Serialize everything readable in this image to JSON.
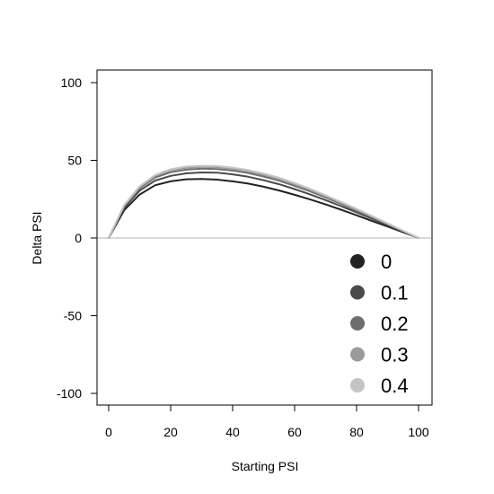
{
  "chart_data": {
    "type": "line",
    "title": "",
    "xlabel": "Starting PSI",
    "ylabel": "Delta PSI",
    "xlim": [
      0,
      100
    ],
    "ylim": [
      -100,
      100
    ],
    "xticks": [
      "0",
      "20",
      "40",
      "60",
      "80",
      "100"
    ],
    "yticks": [
      "-100",
      "-50",
      "0",
      "50",
      "100"
    ],
    "grid": false,
    "legend_position": "bottom-right",
    "zero_line": {
      "y": 0,
      "color": "#d9d9d9"
    },
    "series": [
      {
        "name": "0",
        "color": "#222222",
        "x": [
          0,
          5,
          10,
          15,
          20,
          25,
          30,
          35,
          40,
          45,
          50,
          55,
          60,
          65,
          70,
          75,
          80,
          85,
          90,
          95,
          100
        ],
        "y": [
          0,
          18,
          28,
          34,
          36.5,
          37.8,
          38,
          37.6,
          36.5,
          35,
          33,
          30.6,
          27.8,
          24.8,
          21.6,
          18.2,
          14.6,
          11,
          7.4,
          3.7,
          0
        ]
      },
      {
        "name": "0.1",
        "color": "#4a4a4a",
        "x": [
          0,
          5,
          10,
          15,
          20,
          25,
          30,
          35,
          40,
          45,
          50,
          55,
          60,
          65,
          70,
          75,
          80,
          85,
          90,
          95,
          100
        ],
        "y": [
          0,
          19.5,
          30.5,
          37,
          40,
          41.6,
          42.2,
          42,
          41,
          39.4,
          37.2,
          34.6,
          31.5,
          28.1,
          24.4,
          20.5,
          16.5,
          12.4,
          8.3,
          4.2,
          0
        ]
      },
      {
        "name": "0.2",
        "color": "#6e6e6e",
        "x": [
          0,
          5,
          10,
          15,
          20,
          25,
          30,
          35,
          40,
          45,
          50,
          55,
          60,
          65,
          70,
          75,
          80,
          85,
          90,
          95,
          100
        ],
        "y": [
          0,
          20.5,
          32,
          39,
          42.3,
          44,
          44.6,
          44.4,
          43.4,
          41.8,
          39.6,
          36.9,
          33.6,
          30,
          26.1,
          22,
          17.7,
          13.3,
          8.9,
          4.5,
          0
        ]
      },
      {
        "name": "0.3",
        "color": "#9a9a9a",
        "x": [
          0,
          5,
          10,
          15,
          20,
          25,
          30,
          35,
          40,
          45,
          50,
          55,
          60,
          65,
          70,
          75,
          80,
          85,
          90,
          95,
          100
        ],
        "y": [
          0,
          21,
          32.8,
          40,
          43.5,
          45.2,
          45.8,
          45.6,
          44.6,
          43,
          40.8,
          38,
          34.7,
          31,
          27,
          22.7,
          18.3,
          13.8,
          9.2,
          4.6,
          0
        ]
      },
      {
        "name": "0.4",
        "color": "#c4c4c4",
        "x": [
          0,
          5,
          10,
          15,
          20,
          25,
          30,
          35,
          40,
          45,
          50,
          55,
          60,
          65,
          70,
          75,
          80,
          85,
          90,
          95,
          100
        ],
        "y": [
          0,
          21.3,
          33.3,
          40.6,
          44.2,
          46,
          46.5,
          46.3,
          45.3,
          43.7,
          41.5,
          38.7,
          35.4,
          31.6,
          27.5,
          23.2,
          18.7,
          14.1,
          9.4,
          4.7,
          0
        ]
      }
    ]
  }
}
